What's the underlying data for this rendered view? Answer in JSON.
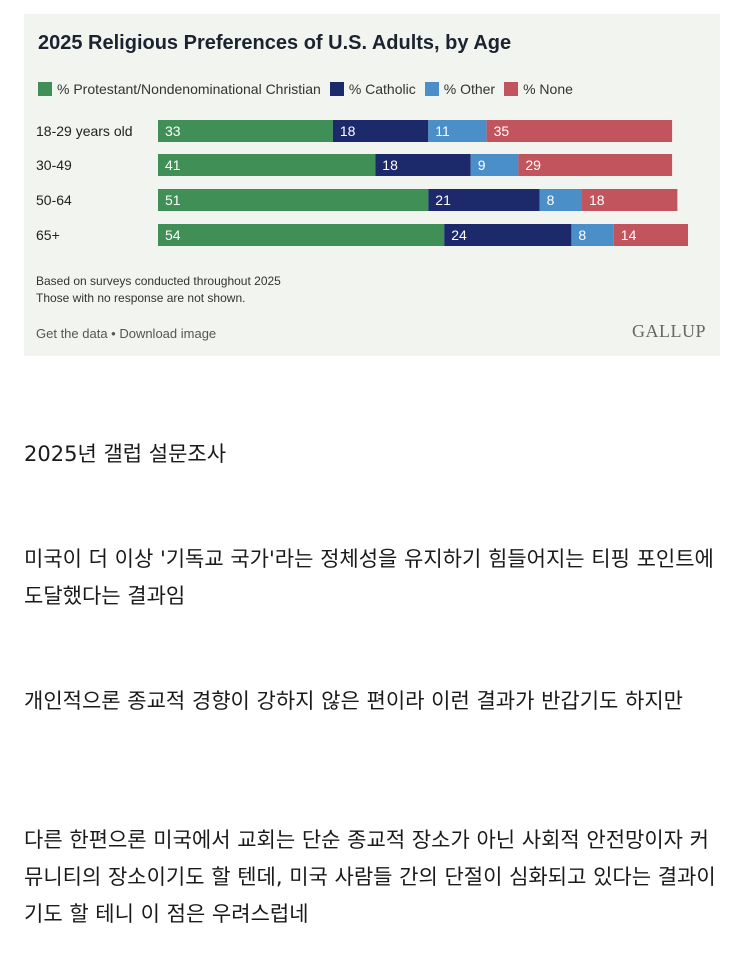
{
  "chart_data": {
    "type": "bar",
    "stacked": true,
    "orientation": "horizontal",
    "title": "2025 Religious Preferences of U.S. Adults, by Age",
    "categories": [
      "18-29 years old",
      "30-49",
      "50-64",
      "65+"
    ],
    "series": [
      {
        "name": "% Protestant/Nondenominational Christian",
        "color": "#3f8f57",
        "values": [
          33,
          41,
          51,
          54
        ]
      },
      {
        "name": "% Catholic",
        "color": "#1c2a6b",
        "values": [
          18,
          18,
          21,
          24
        ]
      },
      {
        "name": "% Other",
        "color": "#4b8fc9",
        "values": [
          11,
          9,
          8,
          8
        ]
      },
      {
        "name": "% None",
        "color": "#c2545e",
        "values": [
          35,
          29,
          18,
          14
        ]
      }
    ],
    "notes": [
      "Based on surveys conducted throughout 2025",
      "Those with no response are not shown."
    ],
    "legend": "top",
    "grid": false
  },
  "card": {
    "links": "Get the data • Download image",
    "brand": "GALLUP"
  },
  "post": {
    "paragraphs": [
      "2025년 갤럽 설문조사",
      "미국이 더 이상 '기독교 국가'라는 정체성을 유지하기 힘들어지는 티핑 포인트에 도달했다는 결과임",
      "개인적으론 종교적 경향이 강하지 않은 편이라 이런 결과가 반갑기도 하지만",
      "다른 한편으론 미국에서 교회는 단순 종교적 장소가 아닌 사회적 안전망이자 커뮤니티의 장소이기도 할 텐데, 미국 사람들 간의 단절이 심화되고 있다는 결과이기도 할 테니 이 점은 우려스럽네"
    ]
  }
}
